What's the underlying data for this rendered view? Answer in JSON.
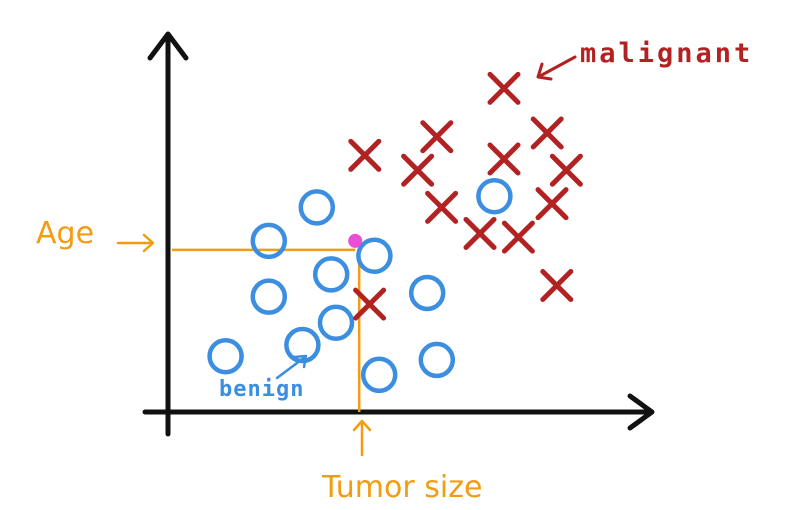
{
  "colors": {
    "axis": "#111111",
    "benign": "#3b8ee0",
    "malignant": "#b22222",
    "guide": "#f39c12",
    "query_point": "#e84fd6"
  },
  "chart_data": {
    "type": "scatter",
    "title": "",
    "xlabel": "Tumor size",
    "ylabel": "Age",
    "xlim": [
      0,
      10
    ],
    "ylim": [
      0,
      10
    ],
    "grid": false,
    "legend": "none",
    "series": [
      {
        "name": "benign",
        "marker": "circle",
        "x": [
          1.2,
          2.1,
          2.1,
          3.1,
          3.4,
          3.5,
          2.8,
          4.3,
          4.4,
          5.4,
          5.6,
          6.8
        ],
        "y": [
          1.5,
          4.6,
          3.1,
          5.5,
          3.7,
          2.4,
          1.8,
          4.2,
          1.0,
          3.2,
          1.4,
          5.8
        ]
      },
      {
        "name": "malignant",
        "marker": "x",
        "x": [
          4.1,
          5.2,
          5.6,
          5.7,
          6.5,
          7.0,
          7.0,
          7.3,
          7.9,
          8.0,
          8.3,
          8.1
        ],
        "y": [
          6.9,
          6.5,
          7.4,
          5.5,
          4.8,
          8.7,
          6.8,
          4.7,
          7.5,
          5.6,
          6.5,
          3.4
        ]
      },
      {
        "marker": "x",
        "x": [
          4.2
        ],
        "y": [
          2.9
        ]
      }
    ],
    "query_point": {
      "x": 3.9,
      "y": 4.6
    },
    "annotations": [
      {
        "text": "malignant",
        "color": "red"
      },
      {
        "text": "benign",
        "color": "blue"
      }
    ]
  }
}
